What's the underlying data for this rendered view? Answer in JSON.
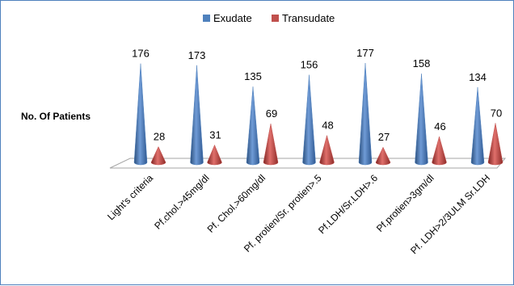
{
  "chart_data": {
    "type": "bar",
    "style": "3d-cone",
    "ylabel": "No. Of Patients",
    "categories": [
      "Light's criteria",
      "Pf.chol.>45mg/dl",
      "Pf. Chol.>60mg/dl",
      "Pf. protien/Sr. protien>.5",
      "Pf.LDH/Sr.LDH>.6",
      "Pf.protien>3gm/dl",
      "Pf. LDH>2/3ULM Sr.LDH"
    ],
    "series": [
      {
        "name": "Exudate",
        "color": "#4f81bd",
        "values": [
          176,
          173,
          135,
          156,
          177,
          158,
          134
        ]
      },
      {
        "name": "Transudate",
        "color": "#c0504d",
        "values": [
          28,
          31,
          69,
          48,
          27,
          46,
          70
        ]
      }
    ],
    "ylim": [
      0,
      180
    ],
    "grid": false,
    "legend_position": "top"
  }
}
